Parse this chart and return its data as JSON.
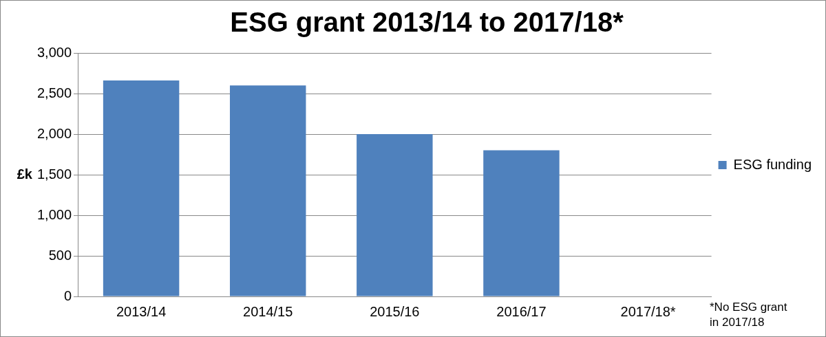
{
  "chart_data": {
    "type": "bar",
    "title": "ESG grant 2013/14 to 2017/18*",
    "ylabel": "£k",
    "categories": [
      "2013/14",
      "2014/15",
      "2015/16",
      "2016/17",
      "2017/18*"
    ],
    "series": [
      {
        "name": "ESG funding",
        "color": "#4f81bd",
        "values": [
          2660,
          2600,
          2000,
          1800,
          0
        ]
      }
    ],
    "ylim": [
      0,
      3000
    ],
    "yticks": [
      {
        "value": 0,
        "label": "0"
      },
      {
        "value": 500,
        "label": "500"
      },
      {
        "value": 1000,
        "label": "1,000"
      },
      {
        "value": 1500,
        "label": "1,500"
      },
      {
        "value": 2000,
        "label": "2,000"
      },
      {
        "value": 2500,
        "label": "2,500"
      },
      {
        "value": 3000,
        "label": "3,000"
      }
    ],
    "grid": "y",
    "legend": "right",
    "annotations": [
      "*No ESG grant in 2017/18"
    ]
  }
}
